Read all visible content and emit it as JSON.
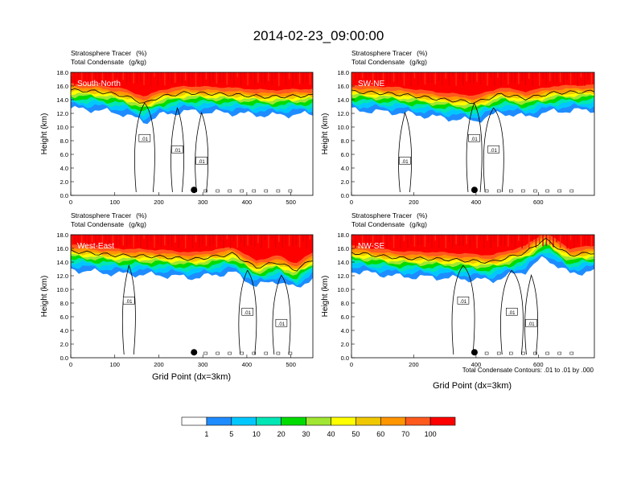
{
  "title": "2014-02-23_09:00:00",
  "label_variable_1": "Stratosphere Tracer",
  "label_unit_1": "(%)",
  "label_variable_2": "Total Condensate",
  "label_unit_2": "(g/kg)",
  "y_axis_label": "Height (km)",
  "x_axis_label": "Grid Point (dx=3km)",
  "contour_note": "Total Condensate Contours: .01 to .01 by .000",
  "contour_label": ".01",
  "colorbar": {
    "levels": [
      "1",
      "5",
      "10",
      "20",
      "30",
      "40",
      "50",
      "60",
      "70",
      "100"
    ],
    "colors": [
      "#ffffff",
      "#1e8cff",
      "#00c8ff",
      "#00e6b4",
      "#00dc00",
      "#a0e632",
      "#ffff00",
      "#f0c800",
      "#ff9600",
      "#ff5a1e",
      "#ff0000"
    ]
  },
  "colors": {
    "contour": "#000000",
    "marker": "#000000",
    "text": "#000000"
  },
  "chart_data": [
    {
      "type": "heatmap",
      "panel": "South-North",
      "xlim": [
        0,
        550
      ],
      "ylim": [
        0,
        18
      ],
      "x_ticks": [
        0,
        100,
        200,
        300,
        400,
        500
      ],
      "y_ticks": [
        "0.0",
        "2.0",
        "4.0",
        "6.0",
        "8.0",
        "10.0",
        "12.0",
        "14.0",
        "16.0",
        "18.0"
      ],
      "tropopause_km": [
        [
          0,
          15.6
        ],
        [
          60,
          15.4
        ],
        [
          120,
          14.8
        ],
        [
          170,
          13.6
        ],
        [
          200,
          14.6
        ],
        [
          260,
          15.2
        ],
        [
          350,
          15.0
        ],
        [
          450,
          14.6
        ],
        [
          550,
          14.8
        ]
      ],
      "marker": {
        "x": 280,
        "y": 0.8
      }
    },
    {
      "type": "heatmap",
      "panel": "SW-NE",
      "xlim": [
        0,
        780
      ],
      "ylim": [
        0,
        18
      ],
      "x_ticks": [
        0,
        200,
        400,
        600
      ],
      "y_ticks": [
        "0.0",
        "2.0",
        "4.0",
        "6.0",
        "8.0",
        "10.0",
        "12.0",
        "14.0",
        "16.0",
        "18.0"
      ],
      "tropopause_km": [
        [
          0,
          15.4
        ],
        [
          150,
          15.0
        ],
        [
          300,
          14.2
        ],
        [
          400,
          13.8
        ],
        [
          480,
          15.0
        ],
        [
          560,
          14.4
        ],
        [
          650,
          15.2
        ],
        [
          780,
          15.4
        ]
      ],
      "marker": {
        "x": 395,
        "y": 0.8
      }
    },
    {
      "type": "heatmap",
      "panel": "West-East",
      "xlim": [
        0,
        550
      ],
      "ylim": [
        0,
        18
      ],
      "x_ticks": [
        0,
        100,
        200,
        300,
        400,
        500
      ],
      "y_ticks": [
        "0.0",
        "2.0",
        "4.0",
        "6.0",
        "8.0",
        "10.0",
        "12.0",
        "14.0",
        "16.0",
        "18.0"
      ],
      "tropopause_km": [
        [
          0,
          15.8
        ],
        [
          100,
          15.2
        ],
        [
          200,
          15.0
        ],
        [
          280,
          14.6
        ],
        [
          370,
          15.4
        ],
        [
          420,
          13.4
        ],
        [
          470,
          14.2
        ],
        [
          510,
          13.0
        ],
        [
          550,
          14.6
        ]
      ],
      "marker": {
        "x": 280,
        "y": 0.8
      }
    },
    {
      "type": "heatmap",
      "panel": "NW-SE",
      "xlim": [
        0,
        780
      ],
      "ylim": [
        0,
        18
      ],
      "x_ticks": [
        0,
        200,
        400,
        600
      ],
      "y_ticks": [
        "0.0",
        "2.0",
        "4.0",
        "6.0",
        "8.0",
        "10.0",
        "12.0",
        "14.0",
        "16.0",
        "18.0"
      ],
      "tropopause_km": [
        [
          0,
          15.6
        ],
        [
          150,
          14.8
        ],
        [
          300,
          14.6
        ],
        [
          450,
          14.2
        ],
        [
          560,
          15.6
        ],
        [
          620,
          17.6
        ],
        [
          700,
          15.2
        ],
        [
          780,
          15.6
        ]
      ],
      "marker": {
        "x": 395,
        "y": 0.8
      }
    }
  ]
}
